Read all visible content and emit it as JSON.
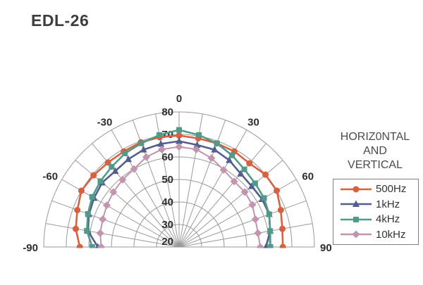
{
  "window": {
    "title": "EDL-26"
  },
  "legend": {
    "title_lines": [
      "HORIZ0NTAL",
      "AND",
      "VERTICAL"
    ],
    "box_border_color": "#7f7f7f",
    "items": [
      {
        "label": "500Hz",
        "color": "#d7603f",
        "marker": "circle"
      },
      {
        "label": "1kHz",
        "color": "#525e8e",
        "marker": "triangle"
      },
      {
        "label": "4kHz",
        "color": "#4f9a88",
        "marker": "square"
      },
      {
        "label": "10kHz",
        "color": "#c294ad",
        "marker": "diamond"
      }
    ]
  },
  "chart_data": {
    "type": "line",
    "subtype": "polar-half",
    "title": "EDL-26",
    "legend_title": "HORIZ0NTAL AND VERTICAL",
    "legend_position": "right",
    "grid": true,
    "grid_color": "#9a9a9a",
    "tick_text_color": "#2e2e2e",
    "angle_unit": "degrees",
    "angle_range": [
      -90,
      90
    ],
    "angle_grid_step_deg": 10,
    "angle_tick_labels": [
      {
        "angle": -90,
        "label": "-90"
      },
      {
        "angle": -60,
        "label": "-60"
      },
      {
        "angle": -30,
        "label": "-30"
      },
      {
        "angle": 0,
        "label": "0"
      },
      {
        "angle": 30,
        "label": "30"
      },
      {
        "angle": 60,
        "label": "60"
      },
      {
        "angle": 90,
        "label": "90"
      }
    ],
    "r_range": [
      20,
      80
    ],
    "r_ticks": [
      20,
      30,
      40,
      50,
      60,
      70,
      80
    ],
    "angles": [
      -90,
      -80,
      -70,
      -60,
      -50,
      -40,
      -30,
      -20,
      -10,
      0,
      10,
      20,
      30,
      40,
      50,
      60,
      70,
      80,
      90
    ],
    "series": [
      {
        "name": "500Hz",
        "color": "#d7603f",
        "marker": "circle",
        "values": [
          64,
          66.5,
          68,
          70,
          69.5,
          69,
          69,
          69.5,
          69.5,
          69.5,
          69,
          69,
          69,
          68.5,
          70,
          70,
          68,
          66.5,
          66
        ]
      },
      {
        "name": "1kHz",
        "color": "#525e8e",
        "marker": "triangle",
        "values": [
          56,
          61,
          62.5,
          63.5,
          64.5,
          64,
          65,
          66,
          66.5,
          67,
          66,
          66,
          64.5,
          62.5,
          62,
          62.5,
          62.5,
          61,
          58.5
        ]
      },
      {
        "name": "4kHz",
        "color": "#4f9a88",
        "marker": "square",
        "values": [
          58.5,
          61.5,
          63,
          64.5,
          65.5,
          66.5,
          68,
          69,
          70.5,
          72,
          70.5,
          69,
          67,
          65,
          64,
          63.5,
          62.5,
          61,
          60.5
        ]
      },
      {
        "name": "10kHz",
        "color": "#c294ad",
        "marker": "diamond",
        "values": [
          54.5,
          55.5,
          56,
          57,
          58,
          59,
          60,
          62.5,
          64,
          64.5,
          64,
          62,
          59.5,
          58,
          58,
          57.5,
          56,
          55.5,
          56
        ]
      }
    ]
  }
}
